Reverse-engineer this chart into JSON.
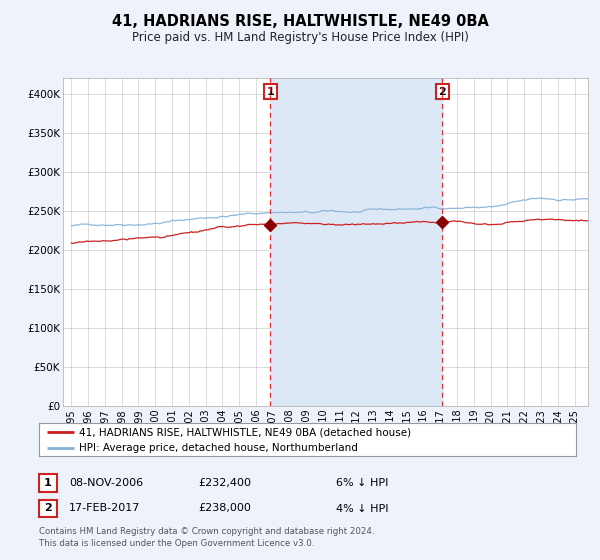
{
  "title": "41, HADRIANS RISE, HALTWHISTLE, NE49 0BA",
  "subtitle": "Price paid vs. HM Land Registry's House Price Index (HPI)",
  "legend_line1": "41, HADRIANS RISE, HALTWHISTLE, NE49 0BA (detached house)",
  "legend_line2": "HPI: Average price, detached house, Northumberland",
  "annotation1_date": "08-NOV-2006",
  "annotation1_price": "£232,400",
  "annotation1_hpi": "6% ↓ HPI",
  "annotation2_date": "17-FEB-2017",
  "annotation2_price": "£238,000",
  "annotation2_hpi": "4% ↓ HPI",
  "sale1_year": 2006.854,
  "sale1_value": 232400,
  "sale2_year": 2017.12,
  "sale2_value": 238000,
  "ylim": [
    0,
    420000
  ],
  "xlim_start": 1994.5,
  "xlim_end": 2025.8,
  "bg_color": "#eef2fb",
  "plot_bg": "#ffffff",
  "shaded_region_color": "#dce8f6",
  "grid_color": "#cccccc",
  "hpi_color": "#82b0d5",
  "price_color": "#cc2020",
  "marker_color": "#8b0000",
  "dashed_line_color": "#dd3333",
  "footer_text": "Contains HM Land Registry data © Crown copyright and database right 2024.\nThis data is licensed under the Open Government Licence v3.0.",
  "yticks": [
    0,
    50000,
    100000,
    150000,
    200000,
    250000,
    300000,
    350000,
    400000
  ],
  "ytick_labels": [
    "£0",
    "£50K",
    "£100K",
    "£150K",
    "£200K",
    "£250K",
    "£300K",
    "£350K",
    "£400K"
  ],
  "xticks": [
    1995,
    1996,
    1997,
    1998,
    1999,
    2000,
    2001,
    2002,
    2003,
    2004,
    2005,
    2006,
    2007,
    2008,
    2009,
    2010,
    2011,
    2012,
    2013,
    2014,
    2015,
    2016,
    2017,
    2018,
    2019,
    2020,
    2021,
    2022,
    2023,
    2024,
    2025
  ]
}
